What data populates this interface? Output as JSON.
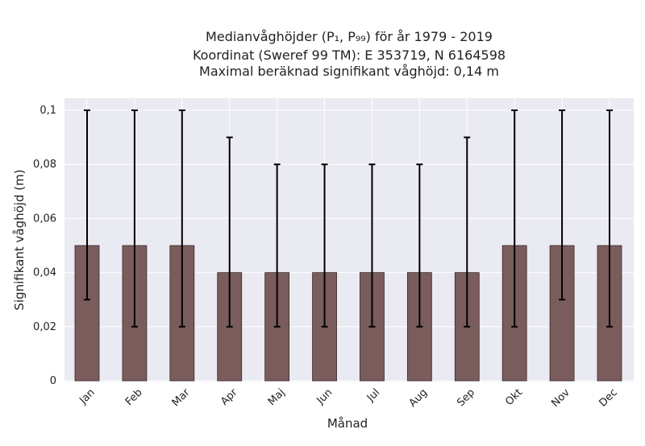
{
  "chart_data": {
    "type": "bar",
    "title_lines": [
      "Medianvåghöjder (P₁, P₉₉) för år 1979 - 2019",
      "Koordinat (Sweref 99 TM): E 353719, N 6164598",
      "Maximal beräknad signifikant våghöjd: 0,14 m"
    ],
    "xlabel": "Månad",
    "ylabel": "Signifikant våghöjd (m)",
    "categories": [
      "Jan",
      "Feb",
      "Mar",
      "Apr",
      "Maj",
      "Jun",
      "Jul",
      "Aug",
      "Sep",
      "Okt",
      "Nov",
      "Dec"
    ],
    "series": [
      {
        "values": [
          0.05,
          0.05,
          0.05,
          0.04,
          0.04,
          0.04,
          0.04,
          0.04,
          0.04,
          0.05,
          0.05,
          0.05
        ],
        "error_low": [
          0.03,
          0.02,
          0.02,
          0.02,
          0.02,
          0.02,
          0.02,
          0.02,
          0.02,
          0.02,
          0.03,
          0.02
        ],
        "error_high": [
          0.1,
          0.1,
          0.1,
          0.09,
          0.08,
          0.08,
          0.08,
          0.08,
          0.09,
          0.1,
          0.1,
          0.1
        ]
      }
    ],
    "yticks": [
      0,
      0.02,
      0.04,
      0.06,
      0.08,
      0.1
    ],
    "ytick_labels": [
      "0",
      "0,02",
      "0,04",
      "0,06",
      "0,08",
      "0,1"
    ],
    "ylim": [
      0,
      0.1
    ],
    "grid": true,
    "colors": {
      "bar": "#7a5c5c",
      "bar_edge": "#3a2a2a",
      "errorbar": "#000000",
      "plot_bg": "#eaeaf2",
      "grid": "#ffffff"
    }
  }
}
